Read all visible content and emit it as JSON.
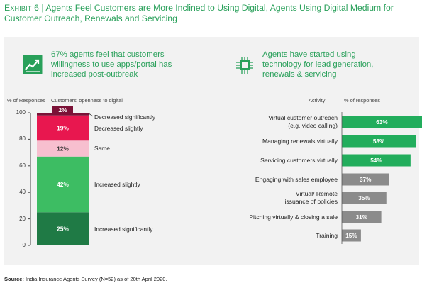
{
  "header": {
    "exhibit_label": "Exhibit 6",
    "separator": "|",
    "title": "Agents Feel Customers are More Inclined to Using Digital, Agents Using Digital Medium for Customer Outreach, Renewals and Servicing"
  },
  "left_panel": {
    "icon": "trending-up-icon",
    "callout": "67% agents feel that customers' willingness to use apps/portal has increased post-outbreak"
  },
  "right_panel": {
    "icon": "chip-icon",
    "callout": "Agents have started using technology for lead generation, renewals & servicing"
  },
  "source": {
    "label": "Source:",
    "text": "India Insurance Agents Survey (N=52) as of 20th April 2020."
  },
  "colors": {
    "title_green": "#29a05a",
    "decreased_significantly": "#7b1237",
    "decreased_slightly": "#e8174f",
    "same": "#f7bfcf",
    "increased_slightly": "#3dbd63",
    "increased_significantly": "#1f7a45",
    "green_bar": "#22ad5c",
    "grey_bar": "#8b8b8b",
    "panel_bg": "#f2f2f2"
  },
  "chart_data": [
    {
      "type": "bar",
      "stacked": true,
      "xlabel": "% of Responses – Customers' openness to digital",
      "ylim": [
        0,
        100
      ],
      "yticks": [
        "0",
        "20",
        "40",
        "60",
        "80",
        "100"
      ],
      "series": [
        {
          "name": "Increased significantly",
          "value": 25,
          "label": "25%"
        },
        {
          "name": "Increased slightly",
          "value": 42,
          "label": "42%"
        },
        {
          "name": "Same",
          "value": 12,
          "label": "12%"
        },
        {
          "name": "Decreased slightly",
          "value": 19,
          "label": "19%"
        },
        {
          "name": "Decreased significantly",
          "value": 2,
          "label": "2%"
        }
      ]
    },
    {
      "type": "bar",
      "orientation": "horizontal",
      "category_header": "Activity",
      "value_header": "% of responses",
      "xlim": [
        0,
        70
      ],
      "categories": [
        "Virtual customer outreach (e.g. video calling)",
        "Managing renewals virtually",
        "Servicing customers virtually",
        "Engaging with sales employee",
        "Virtual/ Remote issuance of policies",
        "Pitching virtually & closing a sale",
        "Training"
      ],
      "category_lines": [
        [
          "Virtual customer outreach",
          "(e.g. video calling)"
        ],
        [
          "Managing renewals virtually"
        ],
        [
          "Servicing customers virtually"
        ],
        [
          "Engaging with sales employee"
        ],
        [
          "Virtual/ Remote",
          "issuance of policies"
        ],
        [
          "Pitching virtually & closing a sale"
        ],
        [
          "Training"
        ]
      ],
      "values": [
        63,
        58,
        54,
        37,
        35,
        31,
        15
      ],
      "labels": [
        "63%",
        "58%",
        "54%",
        "37%",
        "35%",
        "31%",
        "15%"
      ],
      "bar_color_group": [
        "green",
        "green",
        "green",
        "grey",
        "grey",
        "grey",
        "grey"
      ]
    }
  ]
}
